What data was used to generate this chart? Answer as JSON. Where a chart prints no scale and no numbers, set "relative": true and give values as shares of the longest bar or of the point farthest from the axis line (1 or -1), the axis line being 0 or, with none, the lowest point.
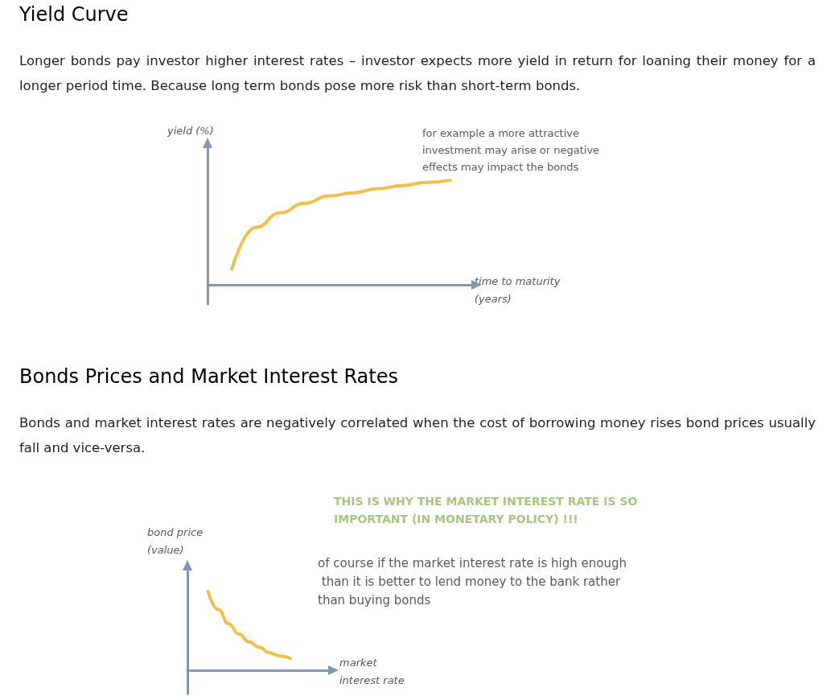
{
  "chart_data": [
    {
      "type": "line",
      "title": "Yield Curve",
      "subtitle": "Longer bonds pay investor higher interest rates – investor expects more yield in return for loaning their money for a longer period time. Because long term bonds pose more risk than short-term bonds.",
      "ylabel": "yield (%)",
      "xlabel": "time to maturity (years)",
      "relative": true,
      "categories": [
        null,
        null,
        null,
        null,
        null,
        null,
        null,
        null,
        null,
        null,
        null,
        null
      ],
      "series": [
        {
          "color": "#f0c04a",
          "values": [
            null,
            0.15,
            0.55,
            0.69,
            0.78,
            0.85,
            0.88,
            0.92,
            0.95,
            0.98,
            1,
            null
          ]
        }
      ],
      "annotations": [
        "for example a more attractive investment may arise or negative effects may impact the bonds"
      ]
    },
    {
      "type": "line",
      "title": "Bonds Prices and Market Interest Rates",
      "subtitle": "Bonds and market interest rates are negatively correlated when the cost of borrowing money rises bond prices usually fall and vice-versa.",
      "ylabel": "bond price (value)",
      "xlabel": "market interest rate",
      "relative": true,
      "categories": [
        null,
        null,
        null,
        null,
        null,
        null,
        null,
        null,
        null,
        null,
        null,
        null,
        null,
        null,
        null
      ],
      "series": [
        {
          "color": "#f0c04a",
          "values": [
            null,
            null,
            1,
            0.77,
            0.59,
            0.46,
            0.36,
            0.29,
            0.22,
            0.18,
            0.15,
            null,
            null,
            null,
            null
          ]
        }
      ],
      "annotations": [
        "THIS IS WHY THE MARKET INTEREST RATE IS SO IMPORTANT (IN MONETARY POLICY) !!!",
        "of course if the market interest rate is high enough than it is better to lend money to the bank rather than buying bonds"
      ]
    }
  ]
}
